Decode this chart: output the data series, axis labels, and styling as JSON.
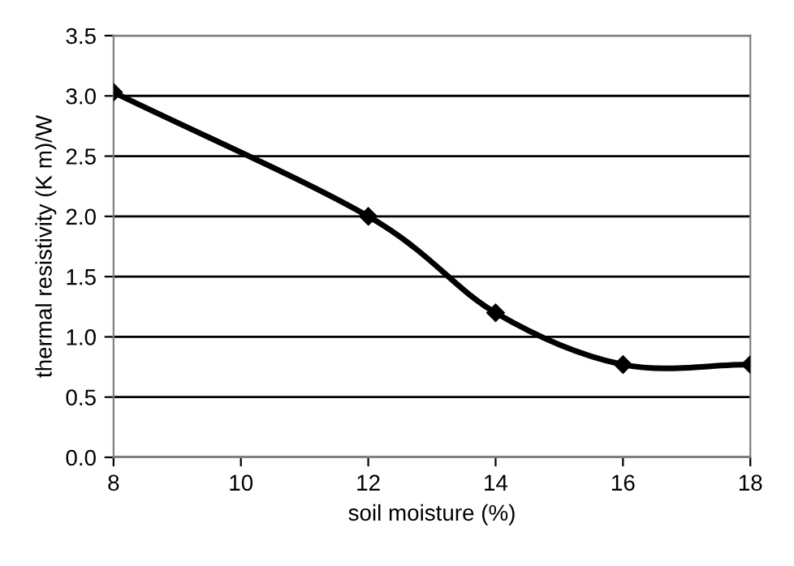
{
  "chart_data": {
    "type": "line",
    "xlabel": "soil moisture (%)",
    "ylabel": "thermal resistivity (K m)/W",
    "x": [
      8,
      12,
      14,
      16,
      18
    ],
    "series": [
      {
        "color": "#000000",
        "values": [
          3.03,
          2.0,
          1.2,
          0.77,
          0.77
        ]
      }
    ],
    "xlim": [
      8,
      18
    ],
    "xticks": [
      8,
      10,
      12,
      14,
      16,
      18
    ],
    "ylim": [
      0,
      3.5
    ],
    "yticks": [
      {
        "value": 0,
        "label": "0.0"
      },
      {
        "value": 0.5,
        "label": "0.5"
      },
      {
        "value": 1,
        "label": "1.0"
      },
      {
        "value": 1.5,
        "label": "1.5"
      },
      {
        "value": 2,
        "label": "2.0"
      },
      {
        "value": 2.5,
        "label": "2.5"
      },
      {
        "value": 3,
        "label": "3.0"
      },
      {
        "value": 3.5,
        "label": "3.5"
      }
    ],
    "grid": "y",
    "marker": "diamond",
    "line_style": "solid"
  }
}
